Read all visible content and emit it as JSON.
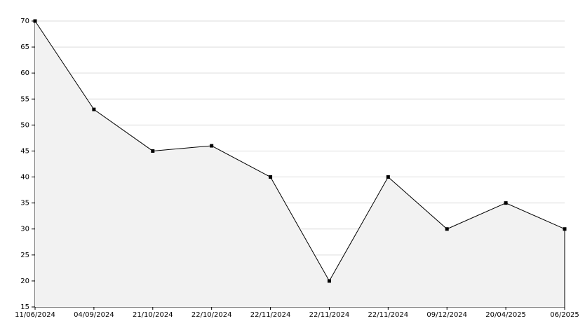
{
  "chart_data": {
    "type": "line",
    "categories": [
      "11/06/2024",
      "04/09/2024",
      "21/10/2024",
      "22/10/2024",
      "22/11/2024",
      "22/11/2024",
      "22/11/2024",
      "09/12/2024",
      "20/04/2025",
      "06/2025"
    ],
    "values": [
      70,
      53,
      45,
      46,
      40,
      20,
      40,
      30,
      35,
      30
    ],
    "color": "#000000",
    "area_color": "#f2f2f2",
    "fill_area": true,
    "ylim": [
      15,
      70
    ],
    "yticks": [
      15,
      20,
      25,
      30,
      35,
      40,
      45,
      50,
      55,
      60,
      65,
      70
    ],
    "grid": true
  }
}
